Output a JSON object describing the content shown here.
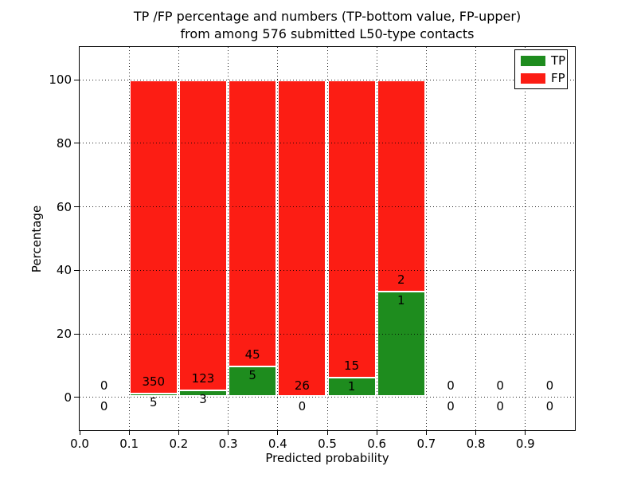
{
  "chart_data": {
    "type": "bar",
    "stacked": true,
    "title_lines": [
      "TP /FP percentage and numbers (TP-bottom value, FP-upper)",
      "from among 576 submitted L50-type contacts"
    ],
    "xlabel": "Predicted probability",
    "ylabel": "Percentage",
    "xlim": [
      0.0,
      1.0
    ],
    "ylim": [
      -10.3,
      110.3
    ],
    "xtick_labels": [
      "0.0",
      "0.1",
      "0.2",
      "0.3",
      "0.4",
      "0.5",
      "0.6",
      "0.7",
      "0.8",
      "0.9"
    ],
    "xticks": [
      0.0,
      0.1,
      0.2,
      0.3,
      0.4,
      0.5,
      0.6,
      0.7,
      0.8,
      0.9
    ],
    "yticks": [
      0,
      20,
      40,
      60,
      80,
      100
    ],
    "grid": true,
    "grid_style": "dotted",
    "total_submitted_contacts": 576,
    "colors": {
      "tp": "#1e8c1e",
      "fp": "#fc1d14",
      "bar_edge": "#ffffff"
    },
    "legend": {
      "position": "upper right",
      "entries": [
        {
          "label": "TP",
          "color": "#1e8c1e"
        },
        {
          "label": "FP",
          "color": "#fc1d14"
        }
      ]
    },
    "label_convention": "FP count printed above TP-bar top, TP count printed below it",
    "bins": [
      {
        "range": [
          0.0,
          0.1
        ],
        "tp_count": 0,
        "fp_count": 0,
        "tp_pct": 0.0,
        "fp_pct": 0.0,
        "has_bar": false
      },
      {
        "range": [
          0.1,
          0.2
        ],
        "tp_count": 5,
        "fp_count": 350,
        "tp_pct": 1.41,
        "fp_pct": 98.59,
        "has_bar": true
      },
      {
        "range": [
          0.2,
          0.3
        ],
        "tp_count": 3,
        "fp_count": 123,
        "tp_pct": 2.38,
        "fp_pct": 97.62,
        "has_bar": true
      },
      {
        "range": [
          0.3,
          0.4
        ],
        "tp_count": 5,
        "fp_count": 45,
        "tp_pct": 10.0,
        "fp_pct": 90.0,
        "has_bar": true
      },
      {
        "range": [
          0.4,
          0.5
        ],
        "tp_count": 0,
        "fp_count": 26,
        "tp_pct": 0.0,
        "fp_pct": 100.0,
        "has_bar": true
      },
      {
        "range": [
          0.5,
          0.6
        ],
        "tp_count": 1,
        "fp_count": 15,
        "tp_pct": 6.25,
        "fp_pct": 93.75,
        "has_bar": true
      },
      {
        "range": [
          0.6,
          0.7
        ],
        "tp_count": 1,
        "fp_count": 2,
        "tp_pct": 33.33,
        "fp_pct": 66.67,
        "has_bar": true
      },
      {
        "range": [
          0.7,
          0.8
        ],
        "tp_count": 0,
        "fp_count": 0,
        "tp_pct": 0.0,
        "fp_pct": 0.0,
        "has_bar": false
      },
      {
        "range": [
          0.8,
          0.9
        ],
        "tp_count": 0,
        "fp_count": 0,
        "tp_pct": 0.0,
        "fp_pct": 0.0,
        "has_bar": false
      },
      {
        "range": [
          0.9,
          1.0
        ],
        "tp_count": 0,
        "fp_count": 0,
        "tp_pct": 0.0,
        "fp_pct": 0.0,
        "has_bar": false
      }
    ]
  }
}
